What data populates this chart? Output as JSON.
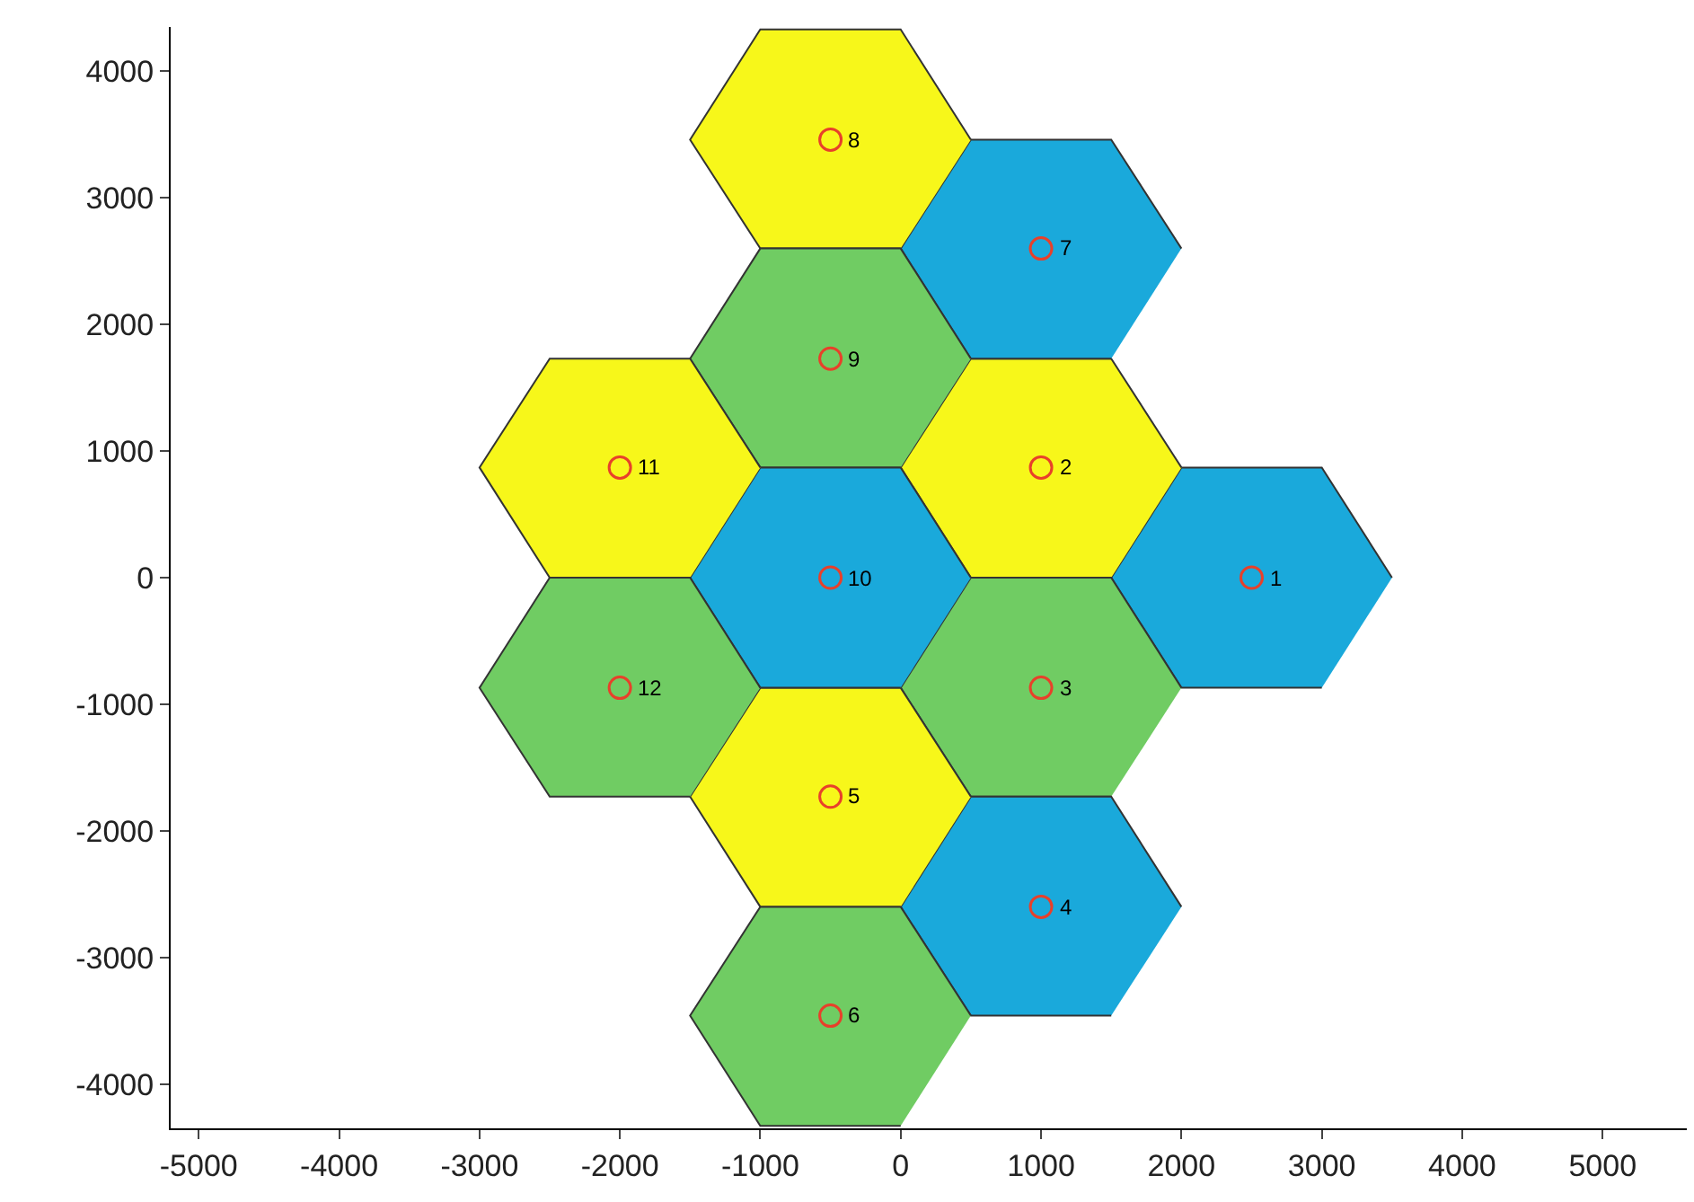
{
  "chart_data": {
    "type": "scatter",
    "grid": false,
    "xlim": [
      -5200,
      5600
    ],
    "ylim": [
      -4350,
      4350
    ],
    "xticks": [
      -5000,
      -4000,
      -3000,
      -2000,
      -1000,
      0,
      1000,
      2000,
      3000,
      4000,
      5000
    ],
    "yticks": [
      -4000,
      -3000,
      -2000,
      -1000,
      0,
      1000,
      2000,
      3000,
      4000
    ],
    "series": [
      {
        "type": "area",
        "color": "#1aa9db",
        "x": [
          3500,
          3000,
          2000,
          1500,
          2000,
          3000
        ],
        "values": [
          0,
          870,
          870,
          0,
          -870,
          -870
        ]
      },
      {
        "type": "area",
        "color": "#f7f71a",
        "x": [
          2000,
          1500,
          500,
          0,
          500,
          1500
        ],
        "values": [
          870,
          1730,
          1730,
          870,
          0,
          0
        ]
      },
      {
        "type": "area",
        "color": "#70cc63",
        "x": [
          2000,
          1500,
          500,
          0,
          500,
          1500
        ],
        "values": [
          -870,
          0,
          0,
          -870,
          -1730,
          -1730
        ]
      },
      {
        "type": "area",
        "color": "#1aa9db",
        "x": [
          2000,
          1500,
          500,
          0,
          500,
          1500
        ],
        "values": [
          -2600,
          -1730,
          -1730,
          -2600,
          -3460,
          -3460
        ]
      },
      {
        "type": "area",
        "color": "#f7f71a",
        "x": [
          500,
          0,
          -1000,
          -1500,
          -1000,
          0
        ],
        "values": [
          -1730,
          -870,
          -870,
          -1730,
          -2600,
          -2600
        ]
      },
      {
        "type": "area",
        "color": "#70cc63",
        "x": [
          500,
          0,
          -1000,
          -1500,
          -1000,
          0
        ],
        "values": [
          -3460,
          -2600,
          -2600,
          -3460,
          -4330,
          -4330
        ]
      },
      {
        "type": "area",
        "color": "#1aa9db",
        "x": [
          2000,
          1500,
          500,
          0,
          500,
          1500
        ],
        "values": [
          2600,
          3460,
          3460,
          2600,
          1730,
          1730
        ]
      },
      {
        "type": "area",
        "color": "#f7f71a",
        "x": [
          500,
          0,
          -1000,
          -1500,
          -1000,
          0
        ],
        "values": [
          3460,
          4330,
          4330,
          3460,
          2600,
          2600
        ]
      },
      {
        "type": "area",
        "color": "#70cc63",
        "x": [
          500,
          0,
          -1000,
          -1500,
          -1000,
          0
        ],
        "values": [
          1730,
          2600,
          2600,
          1730,
          870,
          870
        ]
      },
      {
        "type": "area",
        "color": "#1aa9db",
        "x": [
          500,
          0,
          -1000,
          -1500,
          -1000,
          0
        ],
        "values": [
          0,
          870,
          870,
          0,
          -870,
          -870
        ]
      },
      {
        "type": "area",
        "color": "#f7f71a",
        "x": [
          -1000,
          -1500,
          -2500,
          -3000,
          -2500,
          -1500
        ],
        "values": [
          870,
          1730,
          1730,
          870,
          0,
          0
        ]
      },
      {
        "type": "area",
        "color": "#70cc63",
        "x": [
          -1000,
          -1500,
          -2500,
          -3000,
          -2500,
          -1500
        ],
        "values": [
          -870,
          0,
          0,
          -870,
          -1730,
          -1730
        ]
      },
      {
        "marker": "circle",
        "color": "#e8402a",
        "x": [
          2500,
          1000,
          1000,
          1000,
          -500,
          -500,
          1000,
          -500,
          -500,
          -500,
          -2000,
          -2000
        ],
        "values": [
          0,
          870,
          -870,
          -2600,
          -1730,
          -3460,
          2600,
          3460,
          1730,
          0,
          870,
          -870
        ]
      }
    ],
    "annotations": [
      {
        "text": "1",
        "x": 2500,
        "y": 0
      },
      {
        "text": "2",
        "x": 1000,
        "y": 870
      },
      {
        "text": "3",
        "x": 1000,
        "y": -870
      },
      {
        "text": "4",
        "x": 1000,
        "y": -2600
      },
      {
        "text": "5",
        "x": -500,
        "y": -1730
      },
      {
        "text": "6",
        "x": -500,
        "y": -3460
      },
      {
        "text": "7",
        "x": 1000,
        "y": 2600
      },
      {
        "text": "8",
        "x": -500,
        "y": 3460
      },
      {
        "text": "9",
        "x": -500,
        "y": 1730
      },
      {
        "text": "10",
        "x": -500,
        "y": 0
      },
      {
        "text": "11",
        "x": -2000,
        "y": 870
      },
      {
        "text": "12",
        "x": -2000,
        "y": -870
      }
    ]
  }
}
